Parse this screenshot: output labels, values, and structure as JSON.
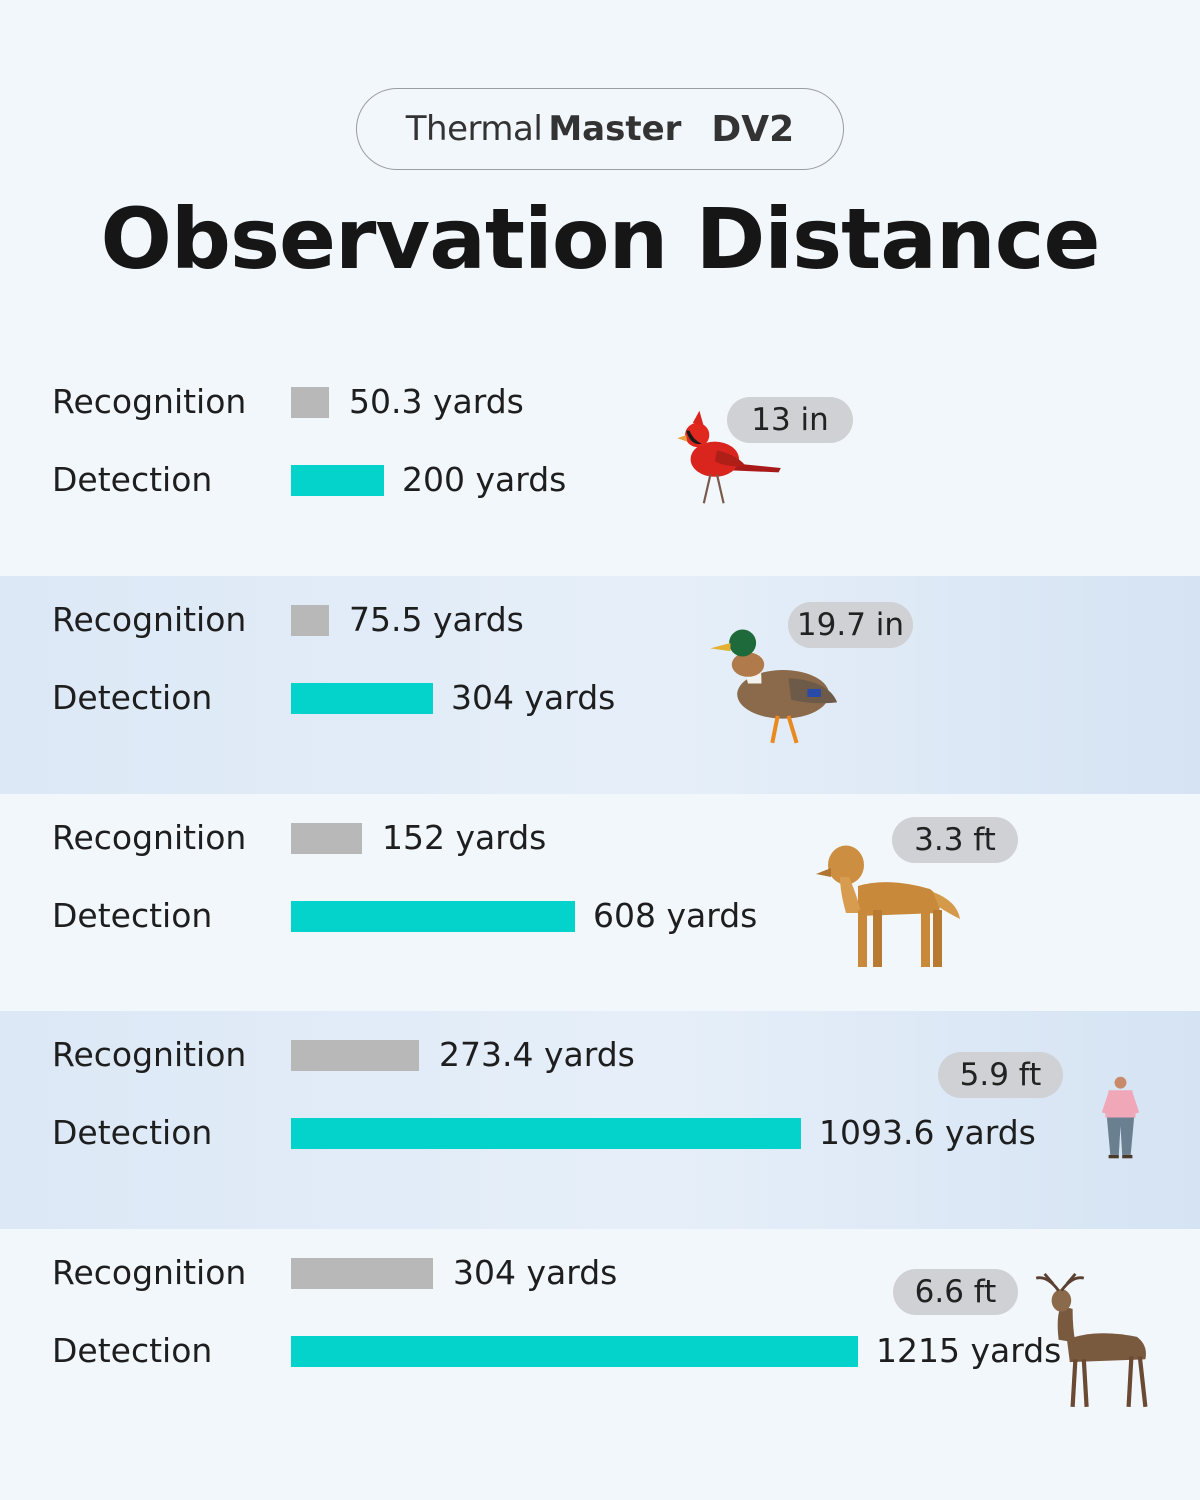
{
  "brand": {
    "name_light": "Thermal",
    "name_bold": "Master",
    "model": "DV2"
  },
  "title": "Observation Distance",
  "colors": {
    "recognition": "#b8b8b8",
    "detection": "#04d3cc",
    "background": "#f2f7fc"
  },
  "labels": {
    "recognition": "Recognition",
    "detection": "Detection"
  },
  "targets": [
    {
      "animal": "cardinal-icon",
      "size": "13 in",
      "recognition_text": "50.3 yards",
      "detection_text": "200 yards"
    },
    {
      "animal": "duck-icon",
      "size": "19.7 in",
      "recognition_text": "75.5 yards",
      "detection_text": "304 yards"
    },
    {
      "animal": "dog-icon",
      "size": "3.3 ft",
      "recognition_text": "152 yards",
      "detection_text": "608 yards"
    },
    {
      "animal": "person-icon",
      "size": "5.9 ft",
      "recognition_text": "273.4 yards",
      "detection_text": "1093.6 yards"
    },
    {
      "animal": "deer-icon",
      "size": "6.6 ft",
      "recognition_text": "304 yards",
      "detection_text": "1215 yards"
    }
  ],
  "chart_data": {
    "type": "bar",
    "orientation": "horizontal",
    "title": "Observation Distance",
    "categories": [
      "13 in",
      "19.7 in",
      "3.3 ft",
      "5.9 ft",
      "6.6 ft"
    ],
    "series": [
      {
        "name": "Recognition",
        "values": [
          50.3,
          75.5,
          152,
          273.4,
          304
        ]
      },
      {
        "name": "Detection",
        "values": [
          200,
          304,
          608,
          1093.6,
          1215
        ]
      }
    ],
    "unit": "yards",
    "grid": false
  }
}
